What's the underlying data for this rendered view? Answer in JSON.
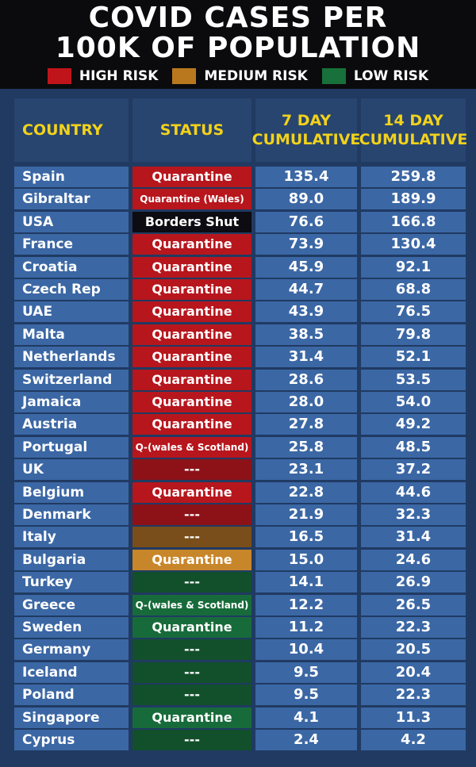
{
  "title": {
    "line1": "COVID CASES PER",
    "line2": "100K OF POPULATION"
  },
  "legend": [
    {
      "label": "HIGH RISK",
      "color": "#c0141b"
    },
    {
      "label": "MEDIUM RISK",
      "color": "#b9781e"
    },
    {
      "label": "LOW RISK",
      "color": "#18703a"
    }
  ],
  "colors": {
    "high": "#b7161d",
    "high_dark": "#8c1218",
    "medium": "#c8862a",
    "medium_dark": "#7a4e1a",
    "low": "#176b3a",
    "low_dark": "#12502c",
    "black": "#0c0c12",
    "cell_blue": "#3b67a4",
    "header_text": "#f2d21a"
  },
  "chart_data": {
    "type": "table",
    "title": "COVID CASES PER 100K OF POPULATION",
    "columns": [
      "COUNTRY",
      "STATUS",
      "7 DAY\nCUMULATIVE",
      "14 DAY\nCUMULATIVE"
    ],
    "rows": [
      {
        "country": "Spain",
        "status": "Quarantine",
        "risk": "high",
        "d7": "135.4",
        "d14": "259.8"
      },
      {
        "country": "Gibraltar",
        "status": "Quarantine (Wales)",
        "risk": "high",
        "d7": "89.0",
        "d14": "189.9"
      },
      {
        "country": "USA",
        "status": "Borders Shut",
        "risk": "black",
        "d7": "76.6",
        "d14": "166.8"
      },
      {
        "country": "France",
        "status": "Quarantine",
        "risk": "high",
        "d7": "73.9",
        "d14": "130.4"
      },
      {
        "country": "Croatia",
        "status": "Quarantine",
        "risk": "high",
        "d7": "45.9",
        "d14": "92.1"
      },
      {
        "country": "Czech Rep",
        "status": "Quarantine",
        "risk": "high",
        "d7": "44.7",
        "d14": "68.8"
      },
      {
        "country": "UAE",
        "status": "Quarantine",
        "risk": "high",
        "d7": "43.9",
        "d14": "76.5"
      },
      {
        "country": "Malta",
        "status": "Quarantine",
        "risk": "high",
        "d7": "38.5",
        "d14": "79.8"
      },
      {
        "country": "Netherlands",
        "status": "Quarantine",
        "risk": "high",
        "d7": "31.4",
        "d14": "52.1"
      },
      {
        "country": "Switzerland",
        "status": "Quarantine",
        "risk": "high",
        "d7": "28.6",
        "d14": "53.5"
      },
      {
        "country": "Jamaica",
        "status": "Quarantine",
        "risk": "high",
        "d7": "28.0",
        "d14": "54.0"
      },
      {
        "country": "Austria",
        "status": "Quarantine",
        "risk": "high",
        "d7": "27.8",
        "d14": "49.2"
      },
      {
        "country": "Portugal",
        "status": "Q-(wales & Scotland)",
        "risk": "high",
        "d7": "25.8",
        "d14": "48.5"
      },
      {
        "country": "UK",
        "status": "---",
        "risk": "high",
        "d7": "23.1",
        "d14": "37.2"
      },
      {
        "country": "Belgium",
        "status": "Quarantine",
        "risk": "high",
        "d7": "22.8",
        "d14": "44.6"
      },
      {
        "country": "Denmark",
        "status": "---",
        "risk": "high",
        "d7": "21.9",
        "d14": "32.3"
      },
      {
        "country": "Italy",
        "status": "---",
        "risk": "medium",
        "d7": "16.5",
        "d14": "31.4"
      },
      {
        "country": "Bulgaria",
        "status": "Quarantine",
        "risk": "medium",
        "d7": "15.0",
        "d14": "24.6"
      },
      {
        "country": "Turkey",
        "status": "---",
        "risk": "low",
        "d7": "14.1",
        "d14": "26.9"
      },
      {
        "country": "Greece",
        "status": "Q-(wales & Scotland)",
        "risk": "low",
        "d7": "12.2",
        "d14": "26.5"
      },
      {
        "country": "Sweden",
        "status": "Quarantine",
        "risk": "low",
        "d7": "11.2",
        "d14": "22.3"
      },
      {
        "country": "Germany",
        "status": "---",
        "risk": "low",
        "d7": "10.4",
        "d14": "20.5"
      },
      {
        "country": "Iceland",
        "status": "---",
        "risk": "low",
        "d7": "9.5",
        "d14": "20.4"
      },
      {
        "country": "Poland",
        "status": "---",
        "risk": "low",
        "d7": "9.5",
        "d14": "22.3"
      },
      {
        "country": "Singapore",
        "status": "Quarantine",
        "risk": "low",
        "d7": "4.1",
        "d14": "11.3"
      },
      {
        "country": "Cyprus",
        "status": "---",
        "risk": "low",
        "d7": "2.4",
        "d14": "4.2"
      }
    ]
  }
}
